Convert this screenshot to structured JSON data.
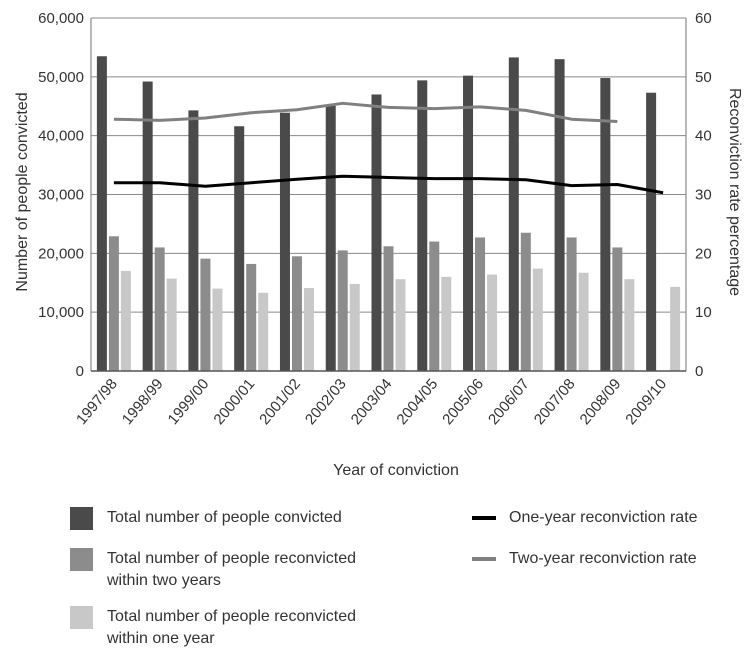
{
  "chart_data": {
    "type": "bar",
    "categories": [
      "1997/98",
      "1998/99",
      "1999/00",
      "2000/01",
      "2001/02",
      "2002/03",
      "2003/04",
      "2004/05",
      "2005/06",
      "2006/07",
      "2007/08",
      "2008/09",
      "2009/10"
    ],
    "xlabel": "Year of conviction",
    "ylabel": "Number of people convicted",
    "y2label": "Reconviction rate percentage",
    "ylim": [
      0,
      60000
    ],
    "y2lim": [
      0,
      60
    ],
    "yticks": [
      "0",
      "10,000",
      "20,000",
      "30,000",
      "40,000",
      "50,000",
      "60,000"
    ],
    "y2ticks": [
      "0",
      "10",
      "20",
      "30",
      "40",
      "50",
      "60"
    ],
    "grid": true,
    "legend_position": "bottom",
    "series": [
      {
        "name": "Total number of people convicted",
        "kind": "bar",
        "axis": "left",
        "color": "#4a4a4a",
        "values": [
          53500,
          49200,
          44300,
          41600,
          43900,
          45100,
          47000,
          49400,
          50200,
          53300,
          53000,
          49800,
          47300
        ]
      },
      {
        "name": "Total number of people reconvicted within two years",
        "kind": "bar",
        "axis": "left",
        "color": "#8c8c8c",
        "values": [
          22900,
          21000,
          19100,
          18200,
          19500,
          20500,
          21200,
          22000,
          22700,
          23500,
          22700,
          21000,
          null
        ]
      },
      {
        "name": "Total number of people reconvicted within one year",
        "kind": "bar",
        "axis": "left",
        "color": "#c8c8c8",
        "values": [
          17000,
          15700,
          14000,
          13300,
          14100,
          14800,
          15600,
          16000,
          16400,
          17400,
          16700,
          15600,
          14300
        ]
      },
      {
        "name": "One-year reconviction rate",
        "kind": "line",
        "axis": "right",
        "color": "#000000",
        "values": [
          32.0,
          32.0,
          31.4,
          32.0,
          32.6,
          33.1,
          32.9,
          32.7,
          32.7,
          32.5,
          31.5,
          31.7,
          30.3
        ]
      },
      {
        "name": "Two-year reconviction rate",
        "kind": "line",
        "axis": "right",
        "color": "#808080",
        "values": [
          42.8,
          42.6,
          43.0,
          43.9,
          44.4,
          45.5,
          44.8,
          44.6,
          44.9,
          44.3,
          42.8,
          42.4,
          null
        ]
      }
    ]
  }
}
